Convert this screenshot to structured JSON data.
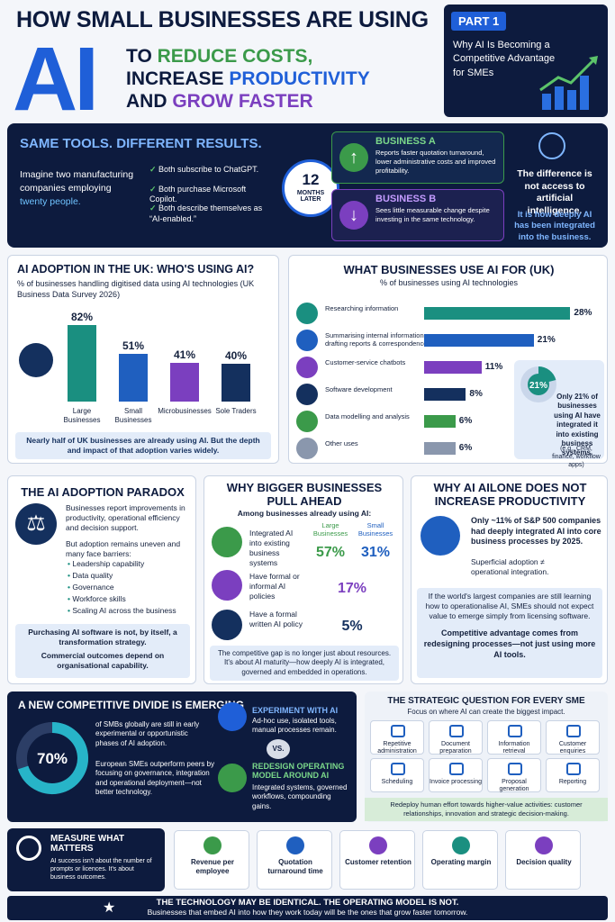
{
  "header": {
    "title": "HOW SMALL BUSINESSES ARE USING",
    "big": "AI",
    "line1": [
      "TO ",
      "REDUCE COSTS,"
    ],
    "line2": [
      "INCREASE ",
      "PRODUCTIVITY"
    ],
    "line3": [
      "AND ",
      "GROW FASTER"
    ]
  },
  "part": {
    "label": "PART 1",
    "text": "Why AI Is Becoming a Competitive Advantage for SMEs"
  },
  "results": {
    "title": "SAME TOOLS. DIFFERENT RESULTS.",
    "intro": [
      "Imagine two manufacturing companies employing ",
      "twenty people."
    ],
    "checks": [
      "Both subscribe to ChatGPT.",
      "Both purchase Microsoft Copilot.",
      "Both describe themselves as “AI-enabled.”"
    ],
    "timer": {
      "number": "12",
      "label": "MONTHS LATER"
    },
    "business_a": {
      "title": "BUSINESS A",
      "text": "Reports faster quotation turnaround, lower administrative costs and improved profitability."
    },
    "business_b": {
      "title": "BUSINESS B",
      "text": "Sees little measurable change despite investing in the same technology."
    },
    "conclusion": [
      "The difference is not access to artificial intelligence.",
      "It is how deeply AI has been integrated into the business."
    ]
  },
  "adoption": {
    "title": "AI ADOPTION IN THE UK: WHO'S USING AI?",
    "subtitle": "% of businesses handling digitised data using AI technologies (UK Business Data Survey 2026)",
    "chart": {
      "type": "bar",
      "categories": [
        "Large Businesses",
        "Small Businesses",
        "Microbusinesses",
        "Sole Traders"
      ],
      "values": [
        82,
        51,
        41,
        40
      ],
      "value_labels": [
        "82%",
        "51%",
        "41%",
        "40%"
      ],
      "colors": [
        "#1a8f80",
        "#1f5fbf",
        "#7b3fbf",
        "#14305e"
      ]
    },
    "note": "Nearly half of UK businesses are already using AI. But the depth and impact of that adoption varies widely."
  },
  "uses": {
    "title": "WHAT BUSINESSES USE AI FOR (UK)",
    "subtitle": "% of businesses using AI technologies",
    "chart": {
      "type": "bar",
      "categories": [
        "Researching information",
        "Summarising internal information or drafting reports & correspondence",
        "Customer-service chatbots",
        "Software development",
        "Data modelling and analysis",
        "Other uses"
      ],
      "values": [
        28,
        21,
        11,
        8,
        6,
        6
      ],
      "value_labels": [
        "28%",
        "21%",
        "11%",
        "8%",
        "6%",
        "6%"
      ],
      "colors": [
        "#1a8f80",
        "#1f5fbf",
        "#7b3fbf",
        "#14305e",
        "#3b9a4a",
        "#8a97ad"
      ]
    },
    "callout": {
      "value": 21,
      "value_label": "21%",
      "text": "Only 21% of businesses using AI have integrated it into existing business systems.",
      "example": "(e.g., CRM, finance, workflow apps)"
    }
  },
  "paradox": {
    "title": "THE AI ADOPTION PARADOX",
    "text1": "Businesses report improvements in productivity, operational efficiency and decision support.",
    "text2": "But adoption remains uneven and many face barriers:",
    "barriers": [
      "Leadership capability",
      "Data quality",
      "Governance",
      "Workforce skills",
      "Scaling AI across the business"
    ],
    "note1": "Purchasing AI software is not, by itself, a transformation strategy.",
    "note2": "Commercial outcomes depend on organisational capability."
  },
  "bigger": {
    "title": "WHY BIGGER BUSINESSES PULL AHEAD",
    "subtitle": "Among businesses already using AI:",
    "col_headers": [
      "Large Businesses",
      "Small Businesses"
    ],
    "rows": [
      {
        "label": "Integrated AI into existing business systems",
        "values": [
          "57%",
          "31%"
        ]
      },
      {
        "label": "Have formal or informal AI policies",
        "values": [
          "17%"
        ]
      },
      {
        "label": "Have a formal written AI policy",
        "values": [
          "5%"
        ]
      }
    ],
    "note": "The competitive gap is no longer just about resources. It's about AI maturity—how deeply AI is integrated, governed and embedded in operations."
  },
  "alone": {
    "title": "WHY AI AILONE DOES NOT INCREASE PRODUCTIVITY",
    "text1": "Only ~11% of S&P 500 companies had deeply integrated AI into core business processes by 2025.",
    "text2": "Superficial adoption ≠ operational integration.",
    "note1": "If the world's largest companies are still learning how to operationalise AI, SMEs should not expect value to emerge simply from licensing software.",
    "note2": "Competitive advantage comes from redesigning processes—not just using more AI tools."
  },
  "divide": {
    "title": "A NEW COMPETITIVE DIVIDE IS EMERGING",
    "donut": {
      "value": 70,
      "value_label": "70%"
    },
    "text1": "of SMBs globally are still in early experimental or opportunistic phases of AI adoption.",
    "text2": "European SMEs outperform peers by focusing on governance, integration and operational deployment—not better technology.",
    "experiment": {
      "title": "EXPERIMENT WITH AI",
      "text": "Ad-hoc use, isolated tools, manual processes remain."
    },
    "vs": "VS.",
    "redesign": {
      "title": "REDESIGN OPERATING MODEL AROUND AI",
      "text": "Integrated systems, governed workflows, compounding gains."
    }
  },
  "strategic": {
    "title": "THE STRATEGIC QUESTION FOR EVERY SME",
    "subtitle": "Focus on where AI can create the biggest impact.",
    "items": [
      "Repetitive administration",
      "Document preparation",
      "Information retrieval",
      "Customer enquiries",
      "Scheduling",
      "Invoice processing",
      "Proposal generation",
      "Reporting"
    ],
    "note": "Redeploy human effort towards higher-value activities: customer relationships, innovation and strategic decision-making."
  },
  "measure": {
    "title": "MEASURE WHAT MATTERS",
    "text": "AI success isn't about the number of prompts or licences. It's about business outcomes.",
    "metrics": [
      "Revenue per employee",
      "Quotation turnaround time",
      "Customer retention",
      "Operating margin",
      "Decision quality"
    ]
  },
  "footer": {
    "title": "THE TECHNOLOGY MAY BE IDENTICAL. THE OPERATING MODEL IS NOT.",
    "text": "Businesses that embed AI into how they work today will be the ones that grow faster tomorrow."
  }
}
